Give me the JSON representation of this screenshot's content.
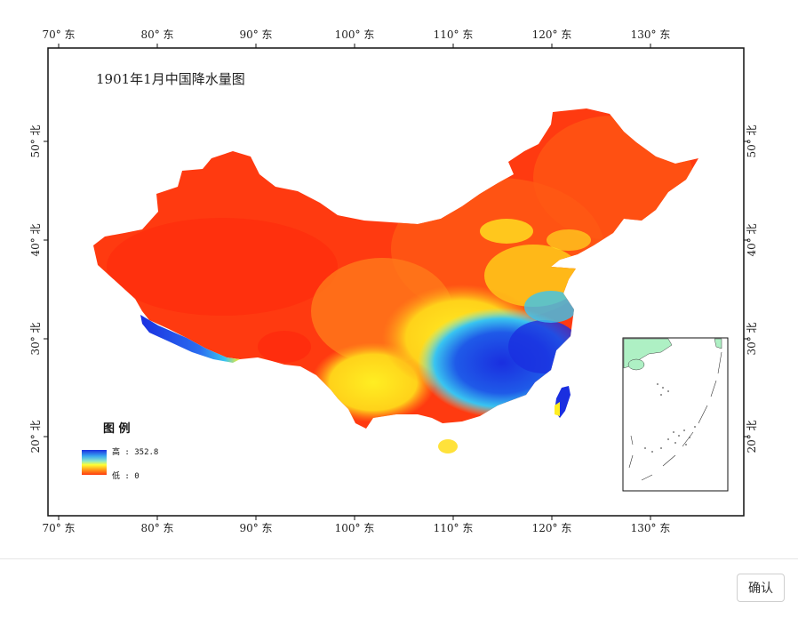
{
  "map": {
    "title": "1901年1月中国降水量图",
    "longitude_labels": [
      "70° 东",
      "80° 东",
      "90° 东",
      "100° 东",
      "110° 东",
      "120° 东",
      "130° 东"
    ],
    "latitude_labels": [
      "20° 北",
      "30° 北",
      "40° 北",
      "50° 北"
    ],
    "legend": {
      "title": "图 例",
      "high_label": "高 : 352.8",
      "low_label": "低 : 0",
      "colors": [
        "#1a2fe0",
        "#3aa8f0",
        "#8fe8c8",
        "#ffff33",
        "#ff9a1a",
        "#ff3a10"
      ]
    },
    "colors": {
      "frame": "#111111",
      "dry_red": "#ff3a10",
      "orange": "#ff7a1a",
      "yellow": "#ffee22",
      "cyan": "#39c4f0",
      "blue": "#1a2fe0",
      "land_inset": "#aef0c4"
    }
  },
  "footer": {
    "confirm_label": "确认"
  }
}
